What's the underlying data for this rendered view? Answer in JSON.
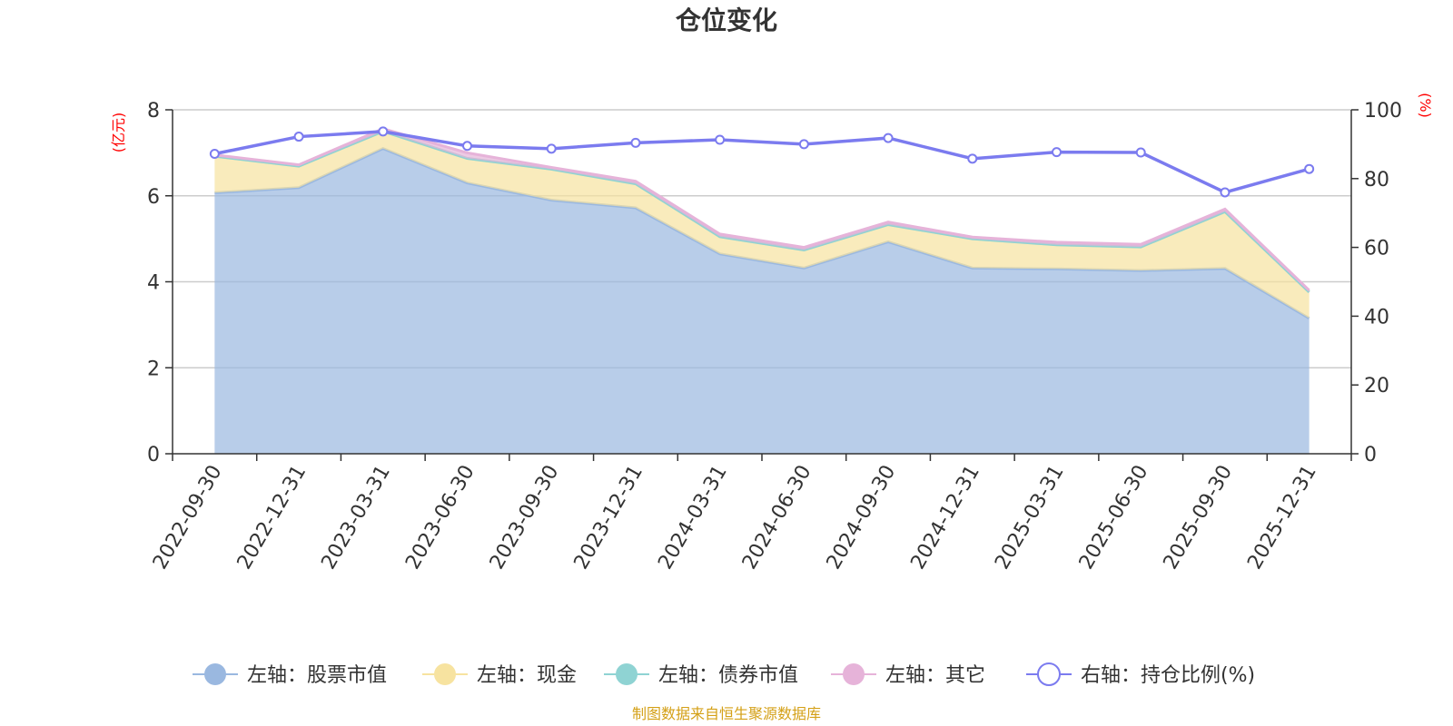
{
  "chart_data": {
    "type": "area",
    "title": "仓位变化",
    "categories": [
      "2022-09-30",
      "2022-12-31",
      "2023-03-31",
      "2023-06-30",
      "2023-09-30",
      "2023-12-31",
      "2024-03-31",
      "2024-06-30",
      "2024-09-30",
      "2024-12-31",
      "2025-03-31",
      "2025-06-30",
      "2025-09-30",
      "2025-12-31"
    ],
    "left_axis": {
      "label": "(亿元)",
      "ylim": [
        0,
        8
      ],
      "ticks": [
        0,
        2,
        4,
        6,
        8
      ]
    },
    "right_axis": {
      "label": "(%)",
      "ylim": [
        0,
        100
      ],
      "ticks": [
        0,
        20,
        40,
        60,
        80,
        100
      ]
    },
    "series": [
      {
        "name": "左轴：股票市值",
        "axis": "left",
        "stack": true,
        "color": "#9ab8e0",
        "values": [
          6.07,
          6.19,
          7.1,
          6.3,
          5.9,
          5.72,
          4.65,
          4.32,
          4.93,
          4.32,
          4.3,
          4.26,
          4.31,
          3.15
        ]
      },
      {
        "name": "左轴：现金",
        "axis": "left",
        "stack": true,
        "color": "#f7e3a0",
        "values": [
          0.85,
          0.5,
          0.4,
          0.57,
          0.72,
          0.56,
          0.4,
          0.42,
          0.4,
          0.68,
          0.56,
          0.55,
          1.32,
          0.61
        ]
      },
      {
        "name": "左轴：债券市值",
        "axis": "left",
        "stack": true,
        "color": "#8fd3d3",
        "values": [
          0,
          0,
          0,
          0,
          0,
          0,
          0,
          0,
          0,
          0,
          0,
          0,
          0,
          0
        ]
      },
      {
        "name": "左轴：其它",
        "axis": "left",
        "stack": true,
        "color": "#e6b3d9",
        "values": [
          0.03,
          0.03,
          0.06,
          0.13,
          0.04,
          0.06,
          0.06,
          0.06,
          0.06,
          0.04,
          0.06,
          0.06,
          0.06,
          0.04
        ]
      },
      {
        "name": "右轴：持仓比例(%)",
        "axis": "right",
        "stack": false,
        "color": "#7b7bef",
        "values": [
          87.2,
          92.2,
          93.7,
          89.5,
          88.7,
          90.4,
          91.3,
          90.0,
          91.8,
          85.8,
          87.7,
          87.6,
          76.0,
          82.8
        ]
      }
    ]
  },
  "source_text": "制图数据来自恒生聚源数据库"
}
